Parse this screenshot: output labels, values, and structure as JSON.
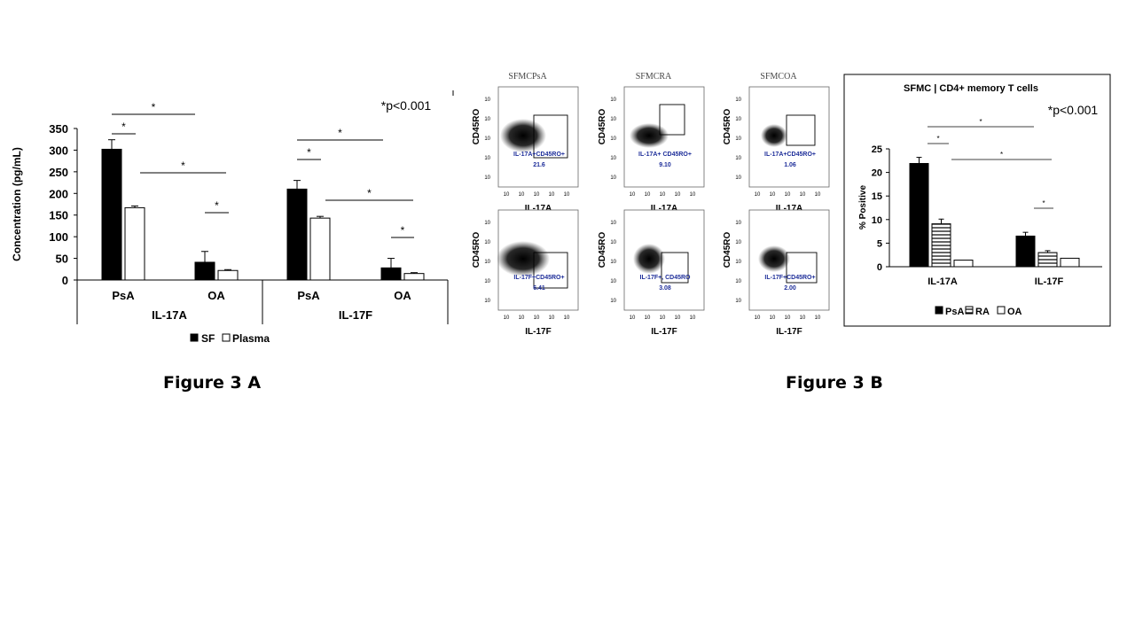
{
  "chart_data": [
    {
      "panel": "A",
      "type": "bar",
      "ylabel": "Concentration (pg/mL)",
      "ylim": [
        0,
        350
      ],
      "yticks": [
        "0",
        "50",
        "100",
        "150",
        "200",
        "250",
        "300",
        "350"
      ],
      "groups": [
        {
          "cytokine": "IL-17A",
          "categories": [
            "PsA",
            "OA"
          ]
        },
        {
          "cytokine": "IL-17F",
          "categories": [
            "PsA",
            "OA"
          ]
        }
      ],
      "series": [
        {
          "name": "SF",
          "color": "#000000",
          "values": [
            302,
            41,
            210,
            28
          ],
          "errors": [
            22,
            25,
            20,
            22
          ]
        },
        {
          "name": "Plasma",
          "color": "#ffffff",
          "values": [
            167,
            22,
            143,
            15
          ],
          "errors": [
            4,
            2,
            4,
            2
          ]
        }
      ],
      "annotation": "*p<0.001",
      "significance_marker": "*"
    },
    {
      "panel": "B-bar",
      "type": "bar",
      "title": "SFMC | CD4+ memory T cells",
      "ylabel": "% Positive",
      "ylim": [
        0,
        25
      ],
      "yticks": [
        "0",
        "5",
        "10",
        "15",
        "20",
        "25"
      ],
      "categories": [
        "IL-17A",
        "IL-17F"
      ],
      "series": [
        {
          "name": "PsA",
          "pattern": "solid",
          "values": [
            21.9,
            6.5
          ],
          "errors": [
            1.3,
            0.8
          ]
        },
        {
          "name": "RA",
          "pattern": "striped",
          "values": [
            9.1,
            3.0
          ],
          "errors": [
            1.0,
            0.4
          ]
        },
        {
          "name": "OA",
          "pattern": "open",
          "values": [
            1.4,
            1.8
          ],
          "errors": [
            0,
            0
          ]
        }
      ],
      "annotation": "*p<0.001",
      "significance_marker": "*"
    },
    {
      "panel": "B-flow",
      "type": "scatter",
      "columns": [
        "SFMCPsA",
        "SFMCRA",
        "SFMCOA"
      ],
      "y_axis_label": "CD45RO",
      "row_x_labels": [
        "IL-17A",
        "IL-17F"
      ],
      "tick_label": "10",
      "gates": [
        [
          "IL-17A+CD45RO+",
          "IL-17A+ CD45RO+",
          "IL-17A+CD45RO+"
        ],
        [
          "IL-17F+CD45RO+",
          "IL-17F+, CD45RO",
          "IL-17F+CD45RO+"
        ]
      ],
      "gate_values": [
        [
          "21.6",
          "9.10",
          "1.06"
        ],
        [
          "6.41",
          "3.08",
          "2.00"
        ]
      ]
    }
  ],
  "captions": {
    "fig_a": "Figure 3 A",
    "fig_b": "Figure 3 B"
  },
  "colors": {
    "gate_text": "#1f2f9a",
    "axis": "#000000"
  }
}
